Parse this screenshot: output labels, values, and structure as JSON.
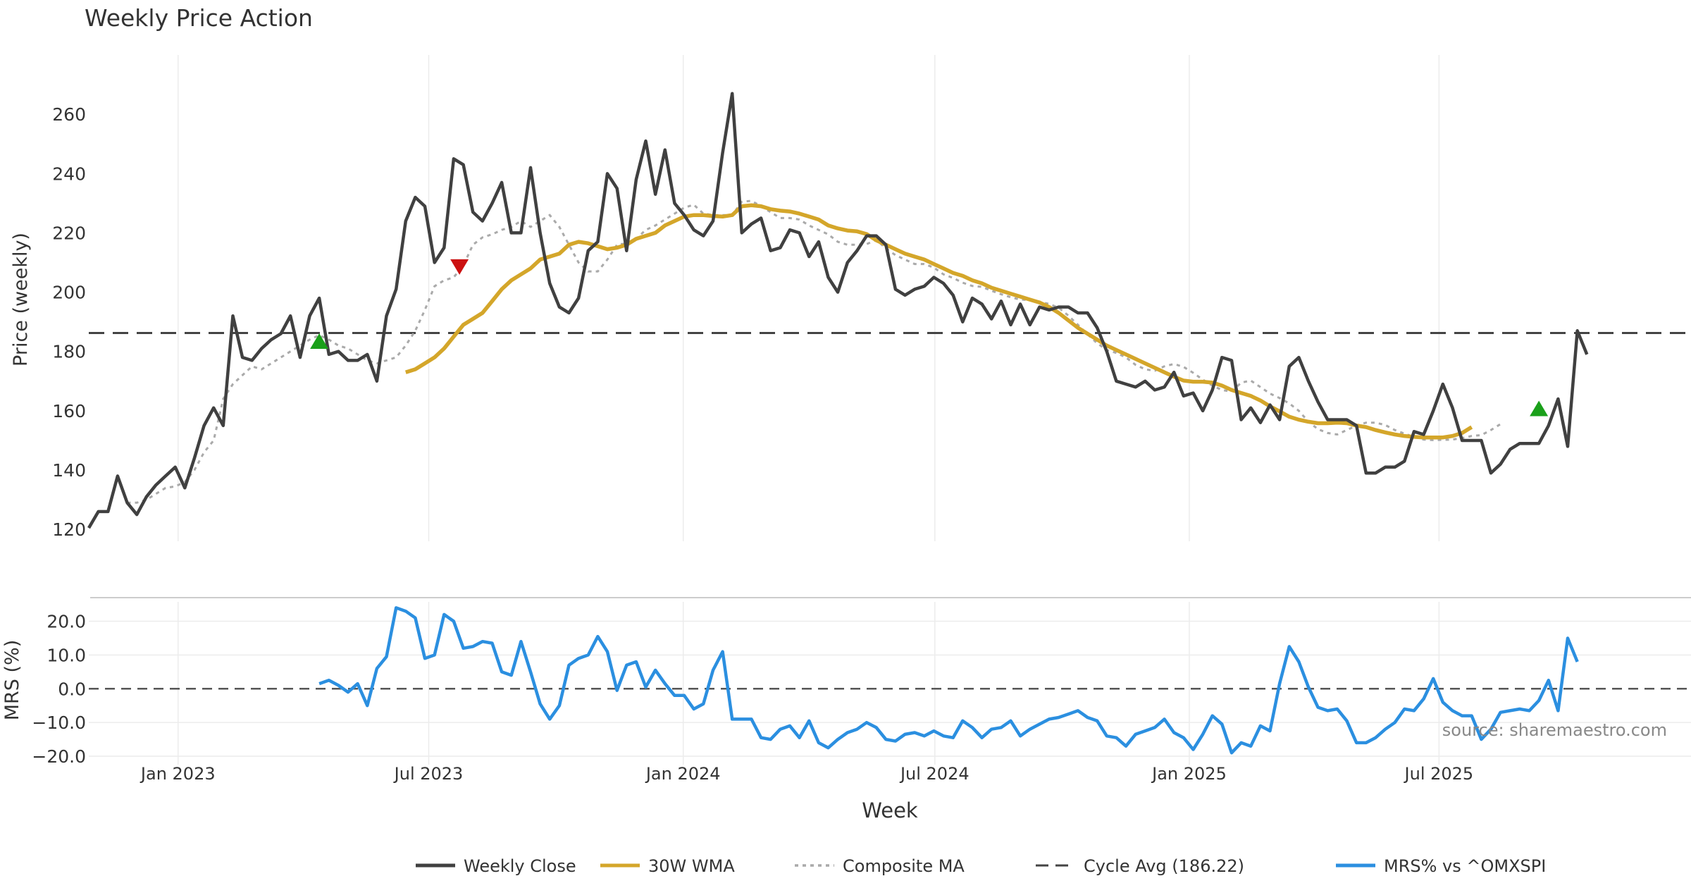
{
  "chart_data": {
    "type": "line",
    "title": "Weekly Price Action",
    "xlabel": "Week",
    "source_note": "source: sharemaestro.com",
    "x_tick_labels": [
      "Jan 2023",
      "Jul 2023",
      "Jan 2024",
      "Jul 2024",
      "Jan 2025",
      "Jul 2025"
    ],
    "x_tick_positions": [
      10.3,
      36.4,
      62.9,
      89.1,
      115.6,
      141.6
    ],
    "colors": {
      "close": "#404040",
      "wma": "#d4a62a",
      "composite": "#aaaaaa",
      "cycle": "#444444",
      "mrs": "#2b8fe0",
      "buy": "#1aa01a",
      "sell": "#cc1111",
      "grid": "#ececec"
    },
    "price_panel": {
      "ylabel": "Price (weekly)",
      "ylim": [
        116,
        280
      ],
      "yticks": [
        120,
        140,
        160,
        180,
        200,
        220,
        240,
        260
      ],
      "cycle_avg": 186.22,
      "series": [
        {
          "name": "Weekly Close",
          "x0": 1,
          "values": [
            120.5,
            126,
            126,
            138,
            129,
            125,
            131,
            135,
            138,
            141,
            134,
            144,
            155,
            161,
            155,
            192,
            178,
            177,
            181,
            184,
            186,
            192,
            178,
            192,
            198,
            179,
            180,
            177,
            177,
            179,
            170,
            192,
            201,
            224,
            232,
            229,
            210,
            215,
            245,
            243,
            227,
            224,
            230,
            237,
            220,
            220,
            242,
            220,
            203,
            195,
            193,
            198,
            214,
            217,
            240,
            235,
            214,
            238,
            251,
            233,
            248,
            230,
            226,
            221,
            219,
            224,
            247,
            267,
            220,
            223,
            225,
            214,
            215,
            221,
            220,
            212,
            217,
            205,
            200,
            210,
            214,
            219,
            219,
            216,
            201,
            199,
            201,
            202,
            205,
            203,
            199,
            190,
            198,
            196,
            191,
            197,
            189,
            196,
            189,
            195,
            194,
            195,
            195,
            193,
            193,
            188,
            180,
            170,
            169,
            168,
            170,
            167,
            168,
            173,
            165,
            166,
            160,
            167,
            178,
            177,
            157,
            161,
            156,
            162,
            157,
            175,
            178,
            170,
            163,
            157,
            157,
            157,
            155,
            139,
            139,
            141,
            141,
            143,
            153,
            152,
            160,
            169,
            161,
            150,
            150,
            150,
            139,
            142,
            147,
            149,
            149,
            149,
            155,
            164,
            148,
            187,
            179
          ]
        },
        {
          "name": "30W WMA",
          "x0": 34,
          "values": [
            173,
            174,
            176,
            178,
            181,
            185,
            189,
            191,
            193,
            197,
            201,
            204,
            206,
            208,
            211,
            212,
            213,
            216,
            217,
            216.5,
            215.5,
            214.5,
            215,
            216,
            218,
            219,
            220,
            222.5,
            224,
            225.5,
            226,
            226,
            225.7,
            225.5,
            226,
            229,
            229.3,
            229,
            228,
            227.5,
            227.2,
            226.5,
            225.5,
            224.5,
            222.5,
            221.5,
            220.8,
            220.5,
            219.6,
            217.5,
            216,
            214.5,
            213,
            212,
            211,
            209.5,
            208,
            206.5,
            205.5,
            204,
            203,
            201.5,
            200.5,
            199.5,
            198.5,
            197.5,
            196.5,
            195,
            193,
            190.5,
            188,
            186,
            184,
            182,
            180.5,
            179,
            177.5,
            176,
            174.5,
            173,
            171.5,
            170.2,
            169.8,
            169.8,
            169.5,
            168.5,
            167,
            166,
            165,
            163.5,
            161.5,
            159.8,
            158,
            157,
            156.3,
            155.8,
            155.8,
            156,
            155.8,
            155,
            154.5,
            153.5,
            152.7,
            152,
            151.5,
            151.2,
            151,
            151,
            151,
            151.5,
            152.5,
            154.5
          ]
        },
        {
          "name": "Composite MA",
          "x0": 5,
          "values": [
            129,
            129,
            130,
            132,
            134,
            134.5,
            136,
            140,
            146,
            150,
            164,
            169,
            172,
            175,
            174,
            176,
            178,
            180,
            182,
            184,
            185.5,
            184,
            182,
            181,
            179,
            177,
            176,
            177,
            178,
            182,
            187,
            194,
            202,
            204,
            205,
            209,
            216,
            218.5,
            219.5,
            221,
            222,
            224,
            222,
            224,
            226,
            222,
            216,
            210,
            207,
            207,
            211,
            216,
            216.5,
            218,
            221,
            222.5,
            224.5,
            226.5,
            228.5,
            229.5,
            226.5,
            226,
            226,
            226,
            230.5,
            230.8,
            229,
            227,
            225,
            225,
            224.5,
            222.5,
            221,
            219.5,
            217,
            216,
            216,
            216.2,
            217.6,
            214.8,
            212.5,
            211,
            209.5,
            209.5,
            208.3,
            206,
            204.8,
            203.2,
            202.1,
            201.8,
            200.5,
            199.3,
            198.3,
            197.5,
            197.4,
            196.8,
            196,
            194.8,
            192.1,
            189,
            185.8,
            182.8,
            180.5,
            179.5,
            178,
            175.5,
            174,
            173.5,
            175,
            175.8,
            174.8,
            172.8,
            170.5,
            168.5,
            167,
            166.5,
            169.5,
            170.2,
            168,
            165.8,
            164.3,
            162.5,
            160,
            156.3,
            153.8,
            152.5,
            152,
            153.5,
            155,
            156,
            156,
            155.2,
            153.5,
            152.3,
            151.2,
            150.3,
            150.1,
            150.2,
            150.3,
            150.8,
            151.5,
            151.8,
            153.5,
            155.5
          ]
        }
      ],
      "signals": [
        {
          "type": "buy",
          "week": 25,
          "price": 183.5
        },
        {
          "type": "sell",
          "week": 39.6,
          "price": 208.5
        },
        {
          "type": "buy",
          "week": 152,
          "price": 160.8
        }
      ]
    },
    "mrs_panel": {
      "ylabel": "MRS (%)",
      "ylim": [
        -22.5,
        27
      ],
      "yticks": [
        20.0,
        10.0,
        0.0,
        -10.0,
        -20.0
      ],
      "ytick_labels": [
        "20.0",
        "10.0",
        "0.0",
        "−10.0",
        "−20.0"
      ],
      "series": [
        {
          "name": "MRS% vs ^OMXSPI",
          "x0": 25,
          "values": [
            1.5,
            2.5,
            1.0,
            -1.0,
            1.5,
            -5.0,
            6.0,
            9.5,
            24.0,
            23.0,
            21.0,
            9.0,
            10.0,
            22.0,
            20.0,
            12.0,
            12.5,
            14.0,
            13.5,
            5.0,
            4.0,
            14.0,
            5.0,
            -4.5,
            -9.0,
            -5.0,
            7.0,
            9.0,
            10.0,
            15.5,
            11.0,
            -0.5,
            7.0,
            8.0,
            0.5,
            5.5,
            1.5,
            -2.0,
            -2.0,
            -6.0,
            -4.5,
            5.5,
            11.0,
            -9.0,
            -9.0,
            -9.0,
            -14.5,
            -15.0,
            -12.0,
            -11.0,
            -14.5,
            -9.5,
            -16.0,
            -17.5,
            -15.0,
            -13.0,
            -12.0,
            -10.0,
            -11.5,
            -15.0,
            -15.5,
            -13.5,
            -13.0,
            -14.0,
            -12.5,
            -14.0,
            -14.5,
            -9.5,
            -11.5,
            -14.5,
            -12.0,
            -11.5,
            -9.5,
            -14.0,
            -12.0,
            -10.5,
            -9.0,
            -8.5,
            -7.5,
            -6.5,
            -8.5,
            -9.5,
            -14.0,
            -14.5,
            -17.0,
            -13.5,
            -12.5,
            -11.5,
            -9.0,
            -13.0,
            -14.5,
            -18.0,
            -13.5,
            -8.0,
            -10.5,
            -19.0,
            -16.0,
            -17.0,
            -11.0,
            -12.5,
            1.5,
            12.5,
            8.0,
            0.5,
            -5.5,
            -6.5,
            -6.0,
            -9.5,
            -16.0,
            -16.0,
            -14.5,
            -12.0,
            -10.0,
            -6.0,
            -6.5,
            -3.0,
            3.0,
            -4.0,
            -6.5,
            -8.0,
            -8.0,
            -15.0,
            -12.0,
            -7.0,
            -6.5,
            -6.0,
            -6.5,
            -3.5,
            2.5,
            -6.5,
            15.0,
            8.0
          ]
        }
      ]
    },
    "legend": [
      {
        "key": "close",
        "label": "Weekly Close",
        "style": "solid"
      },
      {
        "key": "wma",
        "label": "30W WMA",
        "style": "solid"
      },
      {
        "key": "composite",
        "label": "Composite MA",
        "style": "dotted"
      },
      {
        "key": "cycle",
        "label": "Cycle Avg (186.22)",
        "style": "dashed"
      },
      {
        "key": "mrs",
        "label": "MRS% vs ^OMXSPI",
        "style": "solid"
      }
    ]
  }
}
